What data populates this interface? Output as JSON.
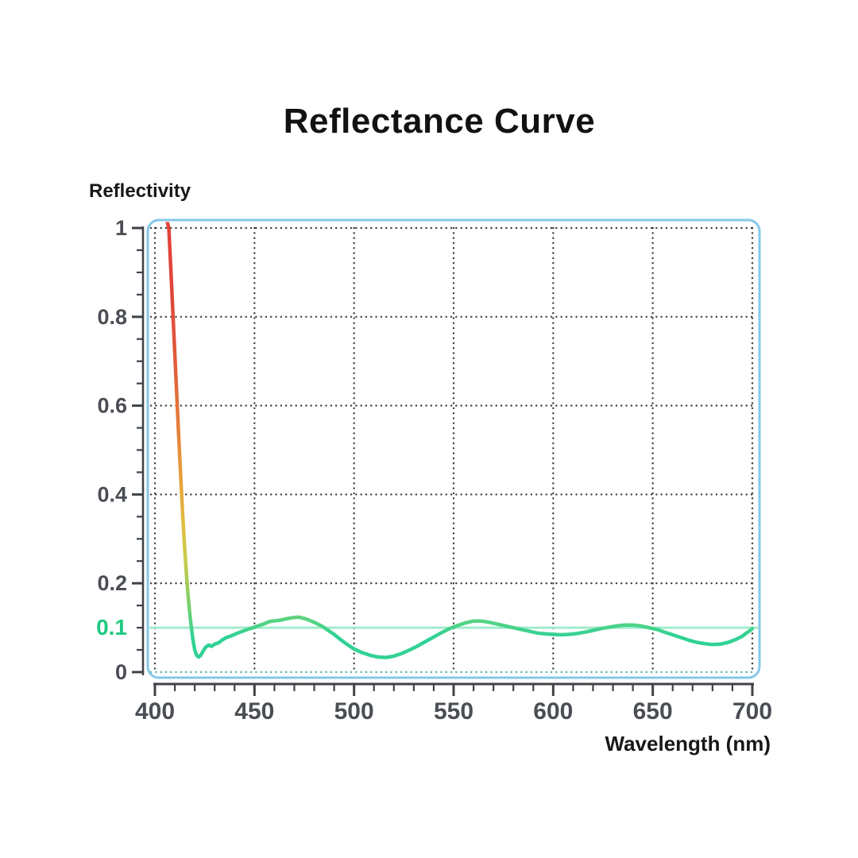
{
  "chart_data": {
    "type": "line",
    "title": "Reflectance Curve",
    "xlabel": "Wavelength (nm)",
    "ylabel": "Reflectivity",
    "xlim": [
      400,
      700
    ],
    "ylim": [
      0,
      1
    ],
    "grid": true,
    "legend": "none",
    "x_ticks": [
      {
        "v": 400,
        "label": "400"
      },
      {
        "v": 450,
        "label": "450"
      },
      {
        "v": 500,
        "label": "500"
      },
      {
        "v": 550,
        "label": "550"
      },
      {
        "v": 600,
        "label": "600"
      },
      {
        "v": 650,
        "label": "650"
      },
      {
        "v": 700,
        "label": "700"
      }
    ],
    "x_minor_step": 10,
    "y_ticks": [
      {
        "v": 1,
        "label": "1"
      },
      {
        "v": 0.8,
        "label": "0.8"
      },
      {
        "v": 0.6,
        "label": "0.6"
      },
      {
        "v": 0.4,
        "label": "0.4"
      },
      {
        "v": 0.2,
        "label": "0.2"
      },
      {
        "v": 0.1,
        "label": "0.1",
        "special": true
      },
      {
        "v": 0,
        "label": "0"
      }
    ],
    "y_minor_step": 0.05,
    "y_gridlines": [
      0.2,
      0.4,
      0.6,
      0.8,
      1.0
    ],
    "zero_line": 0,
    "reference_line": {
      "value": 0.1,
      "label": "0.1"
    },
    "series": [
      {
        "name": "reflectance",
        "points": [
          [
            405.8,
            1.02
          ],
          [
            407,
            1.0
          ],
          [
            408,
            0.905
          ],
          [
            409,
            0.81
          ],
          [
            410,
            0.715
          ],
          [
            411,
            0.62
          ],
          [
            412,
            0.525
          ],
          [
            413,
            0.435
          ],
          [
            414,
            0.35
          ],
          [
            415,
            0.275
          ],
          [
            416,
            0.21
          ],
          [
            417,
            0.155
          ],
          [
            418,
            0.112
          ],
          [
            419,
            0.076
          ],
          [
            420,
            0.05
          ],
          [
            421,
            0.038
          ],
          [
            422,
            0.034
          ],
          [
            423,
            0.038
          ],
          [
            424,
            0.046
          ],
          [
            425.5,
            0.056
          ],
          [
            427,
            0.061
          ],
          [
            428.5,
            0.058
          ],
          [
            430,
            0.063
          ],
          [
            432,
            0.066
          ],
          [
            434,
            0.073
          ],
          [
            436,
            0.078
          ],
          [
            438,
            0.081
          ],
          [
            441,
            0.087
          ],
          [
            444,
            0.092
          ],
          [
            447,
            0.097
          ],
          [
            450,
            0.101
          ],
          [
            453,
            0.106
          ],
          [
            455,
            0.109
          ],
          [
            457,
            0.113
          ],
          [
            459,
            0.115
          ],
          [
            461,
            0.116
          ],
          [
            463,
            0.117
          ],
          [
            465,
            0.119
          ],
          [
            467,
            0.121
          ],
          [
            470,
            0.123
          ],
          [
            472,
            0.124
          ],
          [
            475,
            0.121
          ],
          [
            478,
            0.116
          ],
          [
            481,
            0.11
          ],
          [
            484,
            0.103
          ],
          [
            487,
            0.094
          ],
          [
            490,
            0.085
          ],
          [
            493,
            0.074
          ],
          [
            496,
            0.064
          ],
          [
            500,
            0.052
          ],
          [
            504,
            0.044
          ],
          [
            508,
            0.038
          ],
          [
            512,
            0.034
          ],
          [
            516,
            0.033
          ],
          [
            520,
            0.036
          ],
          [
            524,
            0.042
          ],
          [
            528,
            0.05
          ],
          [
            532,
            0.059
          ],
          [
            536,
            0.069
          ],
          [
            540,
            0.079
          ],
          [
            544,
            0.089
          ],
          [
            548,
            0.098
          ],
          [
            552,
            0.105
          ],
          [
            556,
            0.111
          ],
          [
            560,
            0.115
          ],
          [
            564,
            0.115
          ],
          [
            568,
            0.112
          ],
          [
            572,
            0.108
          ],
          [
            576,
            0.104
          ],
          [
            580,
            0.1
          ],
          [
            584,
            0.096
          ],
          [
            588,
            0.092
          ],
          [
            592,
            0.088
          ],
          [
            596,
            0.086
          ],
          [
            600,
            0.085
          ],
          [
            604,
            0.084
          ],
          [
            608,
            0.085
          ],
          [
            612,
            0.087
          ],
          [
            616,
            0.09
          ],
          [
            620,
            0.094
          ],
          [
            624,
            0.098
          ],
          [
            628,
            0.101
          ],
          [
            632,
            0.104
          ],
          [
            636,
            0.106
          ],
          [
            640,
            0.106
          ],
          [
            644,
            0.104
          ],
          [
            648,
            0.1
          ],
          [
            652,
            0.096
          ],
          [
            656,
            0.09
          ],
          [
            660,
            0.084
          ],
          [
            664,
            0.078
          ],
          [
            668,
            0.072
          ],
          [
            672,
            0.067
          ],
          [
            676,
            0.064
          ],
          [
            680,
            0.062
          ],
          [
            684,
            0.063
          ],
          [
            688,
            0.067
          ],
          [
            692,
            0.074
          ],
          [
            695,
            0.081
          ],
          [
            697,
            0.088
          ],
          [
            699,
            0.094
          ],
          [
            700,
            0.098
          ]
        ]
      }
    ]
  },
  "colors": {
    "plot_border": "#85c7ea",
    "grid_dots": "#3c3f42",
    "zero_line_dots": "#57b3a6",
    "reference_line": "#a0ecce",
    "reference_label": "#1ec980",
    "axis": "#3f4347",
    "curve_gradient": [
      [
        0.0,
        "#e04338"
      ],
      [
        0.165,
        "#df4739"
      ],
      [
        0.31,
        "#e05c3a"
      ],
      [
        0.46,
        "#e57e3b"
      ],
      [
        0.59,
        "#e7a63e"
      ],
      [
        0.69,
        "#dcc144"
      ],
      [
        0.75,
        "#c8cc4b"
      ],
      [
        0.8,
        "#a6cd58"
      ],
      [
        0.85,
        "#7bd06d"
      ],
      [
        0.89,
        "#53d384"
      ],
      [
        0.92,
        "#31d295"
      ],
      [
        1.0,
        "#31d295"
      ]
    ]
  }
}
